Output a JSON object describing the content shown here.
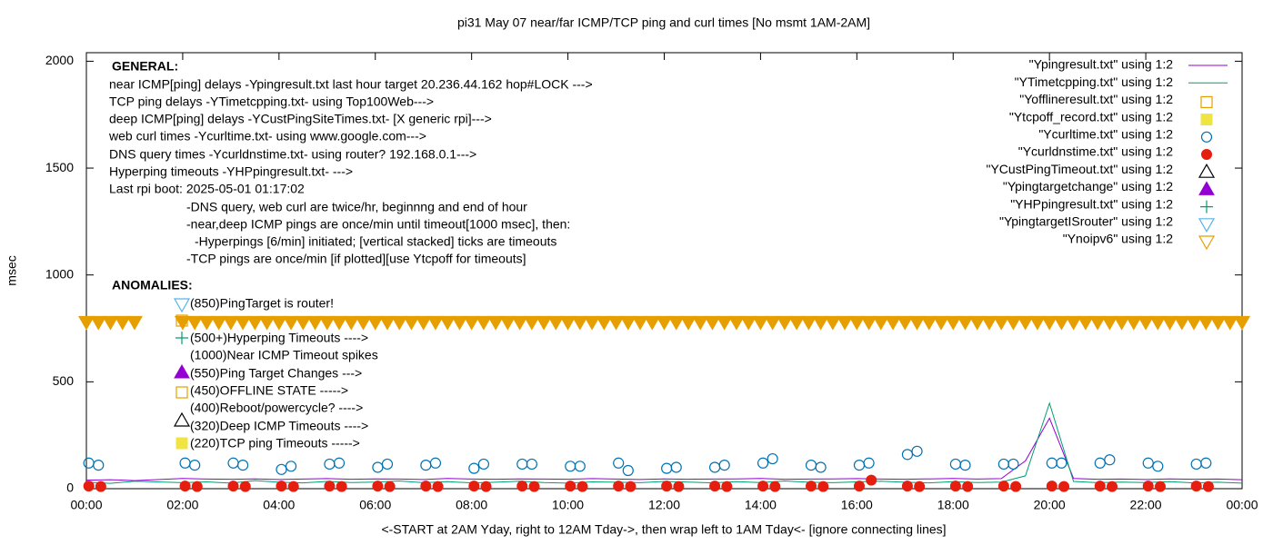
{
  "chart_data": {
    "type": "scatter",
    "title": "pi31 May 07  near/far ICMP/TCP ping and curl times [No msmt 1AM-2AM]",
    "x_label": "<-START at 2AM Yday, right to 12AM Tday->, then wrap left to 1AM Tday<- [ignore connecting lines]",
    "y_label": "msec",
    "xlim": [
      0,
      24
    ],
    "ylim": [
      0,
      2040
    ],
    "xticks": [
      {
        "value": 0,
        "label": "00:00"
      },
      {
        "value": 2,
        "label": "02:00"
      },
      {
        "value": 4,
        "label": "04:00"
      },
      {
        "value": 6,
        "label": "06:00"
      },
      {
        "value": 8,
        "label": "08:00"
      },
      {
        "value": 10,
        "label": "10:00"
      },
      {
        "value": 12,
        "label": "12:00"
      },
      {
        "value": 14,
        "label": "14:00"
      },
      {
        "value": 16,
        "label": "16:00"
      },
      {
        "value": 18,
        "label": "18:00"
      },
      {
        "value": 20,
        "label": "20:00"
      },
      {
        "value": 22,
        "label": "22:00"
      },
      {
        "value": 24,
        "label": "00:00"
      }
    ],
    "yticks": [
      0,
      500,
      1000,
      1500,
      2000
    ],
    "legend": "top-right",
    "annotations": [
      "GENERAL:",
      "near ICMP[ping] delays -Ypingresult.txt last hour target 20.236.44.162 hop#LOCK --->",
      "TCP ping delays -YTimetcpping.txt- using Top100Web--->",
      "deep ICMP[ping] delays -YCustPingSiteTimes.txt- [X generic rpi]--->",
      "web curl times -Ycurltime.txt- using www.google.com--->",
      "DNS query times -Ycurldnstime.txt- using router? 192.168.0.1--->",
      "Hyperping timeouts -YHPpingresult.txt- --->",
      "Last rpi boot: 2025-05-01 01:17:02",
      "-DNS query, web curl are twice/hr, beginnng and end of hour",
      "-near,deep ICMP pings are once/min until timeout[1000 msec], then:",
      "-Hyperpings [6/min] initiated; [vertical stacked] ticks are timeouts",
      "-TCP pings are once/min [if plotted][use Ytcpoff for timeouts]",
      "ANOMALIES:",
      "(850)PingTarget is router!",
      "(500+)Hyperping Timeouts ---->",
      "(1000)Near ICMP Timeout spikes",
      "(550)Ping Target Changes --->",
      "(450)OFFLINE STATE ----->",
      "(400)Reboot/powercycle? ---->",
      "(320)Deep ICMP Timeouts ---->",
      "(220)TCP ping Timeouts ----->"
    ],
    "series": [
      {
        "name": "\"Ypingresult.txt\" using 1:2",
        "color": "#9400d3",
        "style": "line",
        "x": [
          0,
          0.5,
          1,
          2,
          2.5,
          3,
          3.5,
          4,
          4.5,
          5,
          5.5,
          6,
          6.5,
          7,
          7.5,
          8,
          8.5,
          9,
          9.5,
          10,
          10.5,
          11,
          11.5,
          12,
          12.5,
          13,
          13.5,
          14,
          14.5,
          15,
          15.5,
          16,
          16.5,
          17,
          17.5,
          18,
          18.5,
          19,
          19.5,
          20,
          20.5,
          21,
          21.5,
          22,
          22.5,
          23,
          23.5,
          24
        ],
        "values": [
          40,
          42,
          38,
          48,
          45,
          44,
          46,
          43,
          45,
          47,
          44,
          46,
          45,
          43,
          48,
          45,
          44,
          46,
          45,
          44,
          47,
          45,
          43,
          46,
          44,
          45,
          46,
          48,
          44,
          45,
          46,
          47,
          45,
          44,
          46,
          48,
          45,
          47,
          130,
          330,
          48,
          44,
          45,
          43,
          46,
          44,
          45,
          42
        ]
      },
      {
        "name": "\"YTimetcpping.txt\" using 1:2",
        "color": "#009e73",
        "style": "line",
        "x": [
          0,
          0.5,
          1,
          2,
          2.5,
          3,
          3.5,
          4,
          4.5,
          5,
          5.5,
          6,
          6.5,
          7,
          7.5,
          8,
          8.5,
          9,
          9.5,
          10,
          10.5,
          11,
          11.5,
          12,
          12.5,
          13,
          13.5,
          14,
          14.5,
          15,
          15.5,
          16,
          16.5,
          17,
          17.5,
          18,
          18.5,
          19,
          19.5,
          20,
          20.5,
          21,
          21.5,
          22,
          22.5,
          23,
          23.5,
          24
        ],
        "values": [
          30,
          25,
          35,
          28,
          32,
          26,
          38,
          30,
          27,
          34,
          29,
          31,
          36,
          28,
          33,
          27,
          30,
          35,
          29,
          26,
          32,
          30,
          28,
          34,
          31,
          27,
          33,
          29,
          36,
          30,
          28,
          32,
          35,
          30,
          27,
          33,
          29,
          31,
          60,
          400,
          34,
          28,
          31,
          29,
          33,
          27,
          30,
          26
        ]
      },
      {
        "name": "\"Yofflineresult.txt\" using 1:2",
        "color": "#e69f00",
        "style": "open-square",
        "x": [],
        "values": []
      },
      {
        "name": "\"Ytcpoff_record.txt\" using 1:2",
        "color": "#f0e442",
        "style": "filled-square",
        "x": [],
        "values": []
      },
      {
        "name": "\"Ycurltime.txt\" using 1:2",
        "color": "#0072b2",
        "style": "open-circle",
        "x": [
          0.05,
          0.25,
          2.05,
          2.25,
          3.05,
          3.25,
          4.05,
          4.25,
          5.05,
          5.25,
          6.05,
          6.25,
          7.05,
          7.25,
          8.05,
          8.25,
          9.05,
          9.25,
          10.05,
          10.25,
          11.05,
          11.25,
          12.05,
          12.25,
          13.05,
          13.25,
          14.05,
          14.25,
          15.05,
          15.25,
          16.05,
          16.25,
          17.05,
          17.25,
          18.05,
          18.25,
          19.05,
          19.25,
          20.05,
          20.25,
          21.05,
          21.25,
          22.05,
          22.25,
          23.05,
          23.25
        ],
        "values": [
          120,
          110,
          120,
          110,
          120,
          110,
          90,
          105,
          115,
          120,
          100,
          115,
          110,
          120,
          95,
          115,
          115,
          115,
          105,
          105,
          120,
          85,
          95,
          100,
          100,
          110,
          120,
          140,
          110,
          100,
          110,
          120,
          160,
          175,
          115,
          110,
          115,
          115,
          120,
          120,
          120,
          135,
          120,
          105,
          115,
          120
        ]
      },
      {
        "name": "\"Ycurldnstime.txt\" using 1:2",
        "color": "#e51e10",
        "style": "filled-circle",
        "x": [
          0.05,
          0.3,
          2.05,
          2.3,
          3.05,
          3.3,
          4.05,
          4.3,
          5.05,
          5.3,
          6.05,
          6.3,
          7.05,
          7.3,
          8.05,
          8.3,
          9.05,
          9.3,
          10.05,
          10.3,
          11.05,
          11.3,
          12.05,
          12.3,
          13.05,
          13.3,
          14.05,
          14.3,
          15.05,
          15.3,
          16.05,
          16.3,
          17.05,
          17.3,
          18.05,
          18.3,
          19.05,
          19.3,
          20.05,
          20.3,
          21.05,
          21.3,
          22.05,
          22.3,
          23.05,
          23.3
        ],
        "values": [
          12,
          10,
          12,
          10,
          12,
          10,
          12,
          10,
          12,
          10,
          12,
          10,
          12,
          10,
          12,
          10,
          12,
          10,
          12,
          10,
          12,
          10,
          12,
          10,
          12,
          10,
          12,
          10,
          12,
          10,
          12,
          40,
          12,
          10,
          12,
          10,
          12,
          10,
          12,
          10,
          12,
          10,
          12,
          10,
          12,
          10
        ]
      },
      {
        "name": "\"YCustPingTimeout.txt\" using 1:2",
        "color": "#000000",
        "style": "open-triangle",
        "x": [],
        "values": []
      },
      {
        "name": "\"Ypingtargetchange\" using 1:2",
        "color": "#9400d3",
        "style": "filled-triangle",
        "x": [],
        "values": []
      },
      {
        "name": "\"YHPpingresult.txt\" using 1:2",
        "color": "#009e73",
        "style": "plus",
        "x": [],
        "values": []
      },
      {
        "name": "\"YpingtargetISrouter\" using 1:2",
        "color": "#56b4e9",
        "style": "open-triangle-down",
        "x": [],
        "values": []
      },
      {
        "name": "\"Ynoipv6\" using 1:2",
        "color": "#e69f00",
        "style": "open-triangle-down",
        "x": [
          0,
          0.25,
          0.5,
          0.75,
          1,
          2,
          2.25,
          2.5,
          2.75,
          3,
          3.25,
          3.5,
          3.75,
          4,
          4.25,
          4.5,
          4.75,
          5,
          5.25,
          5.5,
          5.75,
          6,
          6.25,
          6.5,
          6.75,
          7,
          7.25,
          7.5,
          7.75,
          8,
          8.25,
          8.5,
          8.75,
          9,
          9.25,
          9.5,
          9.75,
          10,
          10.25,
          10.5,
          10.75,
          11,
          11.25,
          11.5,
          11.75,
          12,
          12.25,
          12.5,
          12.75,
          13,
          13.25,
          13.5,
          13.75,
          14,
          14.25,
          14.5,
          14.75,
          15,
          15.25,
          15.5,
          15.75,
          16,
          16.25,
          16.5,
          16.75,
          17,
          17.25,
          17.5,
          17.75,
          18,
          18.25,
          18.5,
          18.75,
          19,
          19.25,
          19.5,
          19.75,
          20,
          20.25,
          20.5,
          20.75,
          21,
          21.25,
          21.5,
          21.75,
          22,
          22.25,
          22.5,
          22.75,
          23,
          23.25,
          23.5,
          23.75,
          24
        ],
        "values": [
          780,
          780,
          780,
          780,
          780,
          780,
          780,
          780,
          780,
          780,
          780,
          780,
          780,
          780,
          780,
          780,
          780,
          780,
          780,
          780,
          780,
          780,
          780,
          780,
          780,
          780,
          780,
          780,
          780,
          780,
          780,
          780,
          780,
          780,
          780,
          780,
          780,
          780,
          780,
          780,
          780,
          780,
          780,
          780,
          780,
          780,
          780,
          780,
          780,
          780,
          780,
          780,
          780,
          780,
          780,
          780,
          780,
          780,
          780,
          780,
          780,
          780,
          780,
          780,
          780,
          780,
          780,
          780,
          780,
          780,
          780,
          780,
          780,
          780,
          780,
          780,
          780,
          780,
          780,
          780,
          780,
          780,
          780,
          780,
          780,
          780,
          780,
          780,
          780,
          780,
          780,
          780,
          780,
          780
        ]
      }
    ]
  }
}
